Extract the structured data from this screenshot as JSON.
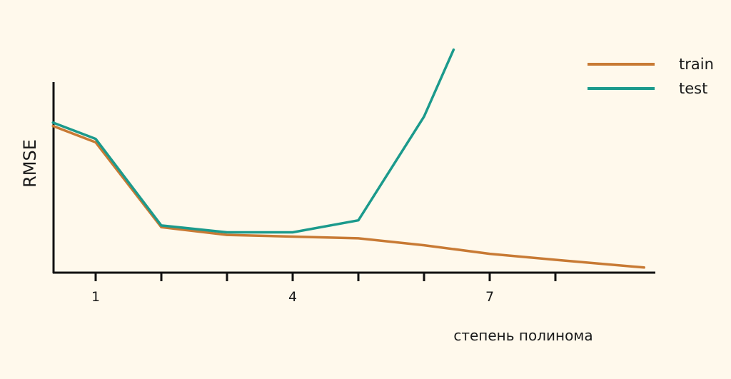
{
  "chart_data": {
    "type": "line",
    "title": "",
    "xlabel": "степень полинома",
    "ylabel": "RMSE",
    "x": [
      0.35,
      1,
      2,
      3,
      4,
      5,
      6,
      6.45,
      7,
      8,
      9.35
    ],
    "xlim": [
      0.35,
      9.45
    ],
    "x_ticks": [
      1,
      2,
      3,
      4,
      5,
      6,
      7,
      8
    ],
    "x_tick_labels": [
      "1",
      "",
      "",
      "4",
      "",
      "",
      "7",
      ""
    ],
    "ylim": [
      0,
      1
    ],
    "y_ticks_shown": false,
    "grid": false,
    "legend_position": "top-right",
    "series": [
      {
        "name": "train",
        "color": "#c87a34",
        "x": [
          0.35,
          1,
          2,
          3,
          4,
          5,
          6,
          7,
          8,
          9.35
        ],
        "values": [
          0.855,
          0.76,
          0.265,
          0.22,
          0.21,
          0.2,
          0.16,
          0.11,
          0.075,
          0.03
        ]
      },
      {
        "name": "test",
        "color": "#1b9a8c",
        "x": [
          0.35,
          1,
          2,
          3,
          4,
          5,
          6,
          6.45
        ],
        "values": [
          0.875,
          0.78,
          0.275,
          0.235,
          0.235,
          0.305,
          0.91,
          1.3
        ]
      }
    ]
  }
}
